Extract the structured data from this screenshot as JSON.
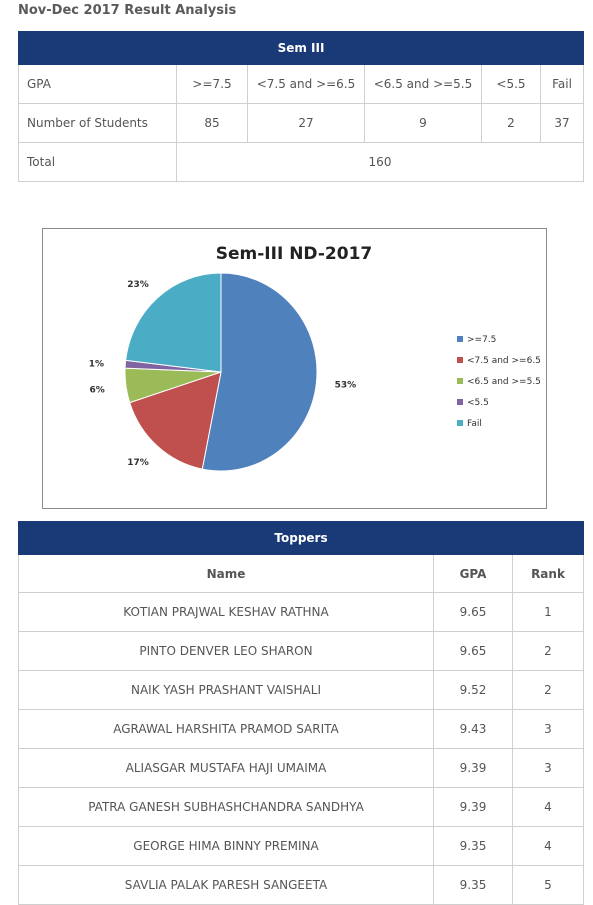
{
  "heading": "Nov-Dec 2017 Result Analysis",
  "sem_table": {
    "title": "Sem III",
    "row1": [
      "GPA",
      ">=7.5",
      "<7.5 and >=6.5",
      "<6.5 and >=5.5",
      "<5.5",
      "Fail"
    ],
    "row2": [
      "Number of Students",
      "85",
      "27",
      "9",
      "2",
      "37"
    ],
    "total_label": "Total",
    "total_value": "160"
  },
  "chart_data": {
    "type": "pie",
    "title": "Sem-III ND-2017",
    "categories": [
      ">=7.5",
      "<7.5 and >=6.5",
      "<6.5 and >=5.5",
      "<5.5",
      "Fail"
    ],
    "values": [
      85,
      27,
      9,
      2,
      37
    ],
    "labels": [
      "53%",
      "17%",
      "6%",
      "1%",
      "23%"
    ],
    "colors": [
      "#4f81bd",
      "#c0504d",
      "#9bbb59",
      "#8064a2",
      "#4bacc6"
    ],
    "legend": "right"
  },
  "toppers": {
    "title": "Toppers",
    "headers": [
      "Name",
      "GPA",
      "Rank"
    ],
    "rows": [
      [
        "KOTIAN PRAJWAL KESHAV RATHNA",
        "9.65",
        "1"
      ],
      [
        "PINTO DENVER LEO SHARON",
        "9.65",
        "2"
      ],
      [
        "NAIK YASH PRASHANT VAISHALI",
        "9.52",
        "2"
      ],
      [
        "AGRAWAL HARSHITA PRAMOD SARITA",
        "9.43",
        "3"
      ],
      [
        "ALIASGAR MUSTAFA HAJI UMAIMA",
        "9.39",
        "3"
      ],
      [
        "PATRA GANESH SUBHASHCHANDRA SANDHYA",
        "9.39",
        "4"
      ],
      [
        "GEORGE HIMA BINNY PREMINA",
        "9.35",
        "4"
      ],
      [
        "SAVLIA PALAK PARESH SANGEETA",
        "9.35",
        "5"
      ]
    ]
  }
}
